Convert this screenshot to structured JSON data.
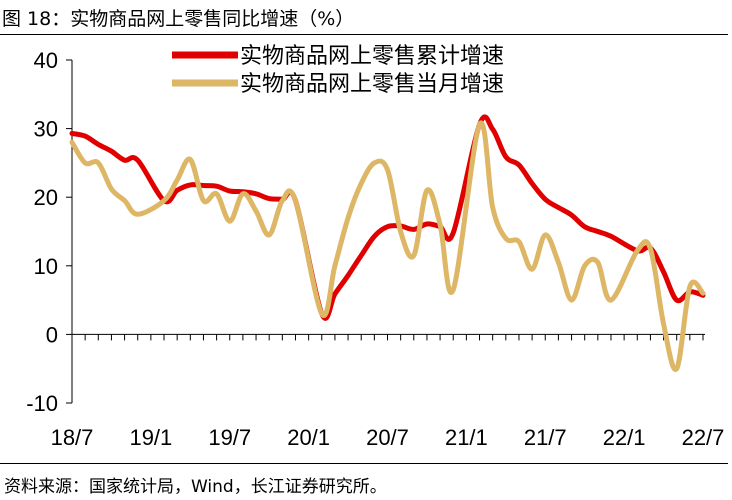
{
  "figure": {
    "title": "图 18：实物商品网上零售同比增速（%）",
    "source": "资料来源：国家统计局，Wind，长江证券研究所。"
  },
  "chart_data": {
    "type": "line",
    "title": "实物商品网上零售同比增速（%）",
    "x": [
      "2018-07",
      "2018-08",
      "2018-09",
      "2018-10",
      "2018-11",
      "2018-12",
      "2019-01",
      "2019-02",
      "2019-03",
      "2019-04",
      "2019-05",
      "2019-06",
      "2019-07",
      "2019-08",
      "2019-09",
      "2019-10",
      "2019-11",
      "2019-12",
      "2020-01",
      "2020-02",
      "2020-03",
      "2020-04",
      "2020-05",
      "2020-06",
      "2020-07",
      "2020-08",
      "2020-09",
      "2020-10",
      "2020-11",
      "2020-12",
      "2021-01",
      "2021-02",
      "2021-03",
      "2021-04",
      "2021-05",
      "2021-06",
      "2021-07",
      "2021-08",
      "2021-09",
      "2021-10",
      "2021-11",
      "2021-12",
      "2022-01",
      "2022-02",
      "2022-03",
      "2022-04",
      "2022-05",
      "2022-06",
      "2022-07"
    ],
    "xtick_labels": [
      "18/7",
      "19/1",
      "19/7",
      "20/1",
      "20/7",
      "21/1",
      "21/7",
      "22/1",
      "22/7"
    ],
    "ylim": [
      -10,
      40
    ],
    "yticks": [
      -10,
      0,
      10,
      20,
      30,
      40
    ],
    "legend_position": "top-right",
    "series": [
      {
        "name": "实物商品网上零售累计增速",
        "color": "#e00000",
        "values": [
          29.3,
          28.9,
          27.7,
          26.7,
          25.4,
          25.4,
          null,
          19.5,
          21.0,
          21.8,
          21.7,
          21.6,
          20.9,
          20.8,
          20.5,
          19.8,
          19.7,
          19.5,
          null,
          3.0,
          5.9,
          8.6,
          11.5,
          14.3,
          15.7,
          15.8,
          15.3,
          16.1,
          15.7,
          14.8,
          null,
          30.6,
          29.9,
          25.9,
          24.7,
          22.0,
          19.7,
          18.5,
          17.4,
          15.7,
          15.0,
          14.3,
          null,
          12.2,
          12.6,
          9.1,
          5.0,
          6.2,
          5.7
        ]
      },
      {
        "name": "实物商品网上零售当月增速",
        "color": "#ddb666",
        "values": [
          28.0,
          25.0,
          25.0,
          21.2,
          19.5,
          17.5,
          null,
          19.5,
          22.5,
          25.5,
          19.5,
          20.5,
          16.5,
          20.5,
          18.0,
          14.5,
          19.5,
          19.5,
          null,
          3.0,
          10.0,
          17.0,
          22.0,
          25.0,
          24.0,
          15.0,
          11.5,
          21.0,
          16.0,
          6.5,
          null,
          30.6,
          18.5,
          14.0,
          13.5,
          9.5,
          14.5,
          10.5,
          5.0,
          10.0,
          10.5,
          5.0,
          null,
          12.2,
          12.5,
          1.5,
          -5.0,
          7.0,
          6.0
        ]
      }
    ]
  }
}
